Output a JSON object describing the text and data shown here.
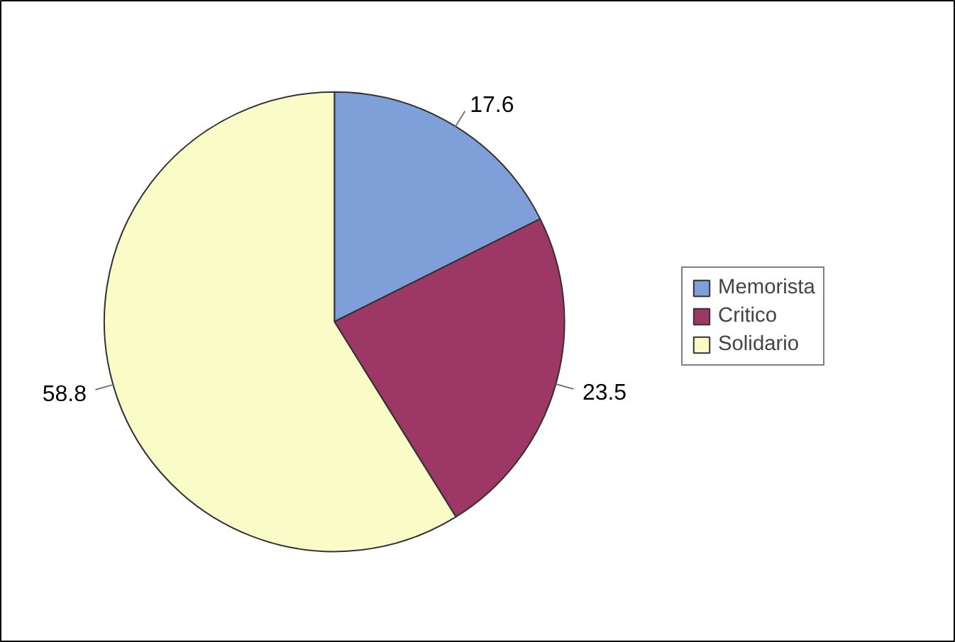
{
  "chart_data": {
    "type": "pie",
    "categories": [
      "Memorista",
      "Critico",
      "Solidario"
    ],
    "values": [
      17.6,
      23.5,
      58.8
    ],
    "colors": [
      "#7f9fd8",
      "#9c3766",
      "#fafcc8"
    ],
    "data_labels": true,
    "legend": "right"
  }
}
